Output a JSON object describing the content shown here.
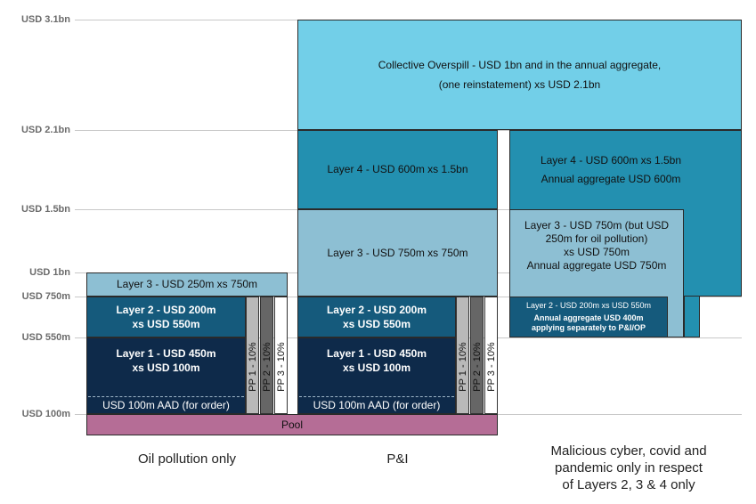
{
  "chart_data": {
    "type": "layered-tower",
    "y_ticks": [
      {
        "label": "USD 3.1bn",
        "value": 3100
      },
      {
        "label": "USD 2.1bn",
        "value": 2100
      },
      {
        "label": "USD 1.5bn",
        "value": 1500
      },
      {
        "label": "USD 1bn",
        "value": 1000
      },
      {
        "label": "USD 750m",
        "value": 750
      },
      {
        "label": "USD 550m",
        "value": 550
      },
      {
        "label": "USD 100m",
        "value": 100
      }
    ],
    "columns": [
      {
        "label": "Oil pollution only"
      },
      {
        "label": "P&I"
      },
      {
        "label": "Malicious cyber, covid and\npandemic only in respect\nof Layers 2, 3 & 4 only"
      }
    ],
    "pool": {
      "label": "Pool",
      "color": "#b56d96"
    },
    "oil_pollution": {
      "aad": "USD 100m AAD (for order)",
      "layer1": "Layer 1 - USD 450m\nxs USD 100m",
      "layer2": "Layer 2 - USD 200m\nxs USD 550m",
      "layer3": "Layer 3 - USD 250m xs 750m",
      "layer3_limit": 1000,
      "pp": [
        "PP 1 - 10%",
        "PP 2 - 10%",
        "PP 3 - 10%"
      ]
    },
    "pandi": {
      "aad": "USD 100m AAD (for order)",
      "layer1": "Layer 1 - USD 450m\nxs USD 100m",
      "layer2": "Layer 2 - USD 200m\nxs USD 550m",
      "layer3": "Layer 3 - USD 750m xs 750m",
      "layer4": "Layer 4 - USD 600m xs 1.5bn",
      "overspill": "Collective Overspill - USD 1bn and in the annual aggregate,\n(one reinstatement) xs USD 2.1bn",
      "pp": [
        "PP 1 - 10%",
        "PP 2 - 10%",
        "PP 3 - 10%"
      ]
    },
    "cyber": {
      "layer2": "Layer 2 - USD 200m xs USD 550m",
      "layer2_agg": "Annual aggregate USD 400m\napplying separately to P&I/OP",
      "layer3": "Layer 3 - USD 750m (but USD\n250m for oil pollution)\nxs USD 750m\nAnnual aggregate USD 750m",
      "layer4": "Layer 4 - USD 600m xs 1.5bn\nAnnual aggregate USD 600m"
    },
    "colors": {
      "layer1": "#0e2a4a",
      "layer2": "#155a7c",
      "layer3": "#8dbfd3",
      "layer4": "#2390b0",
      "overspill": "#72cfe8",
      "pp1": "#b9b9b9",
      "pp2": "#666666",
      "pp3": "#ffffff",
      "grid": "#c8c8c8",
      "tick": "#6b6b6b"
    }
  }
}
